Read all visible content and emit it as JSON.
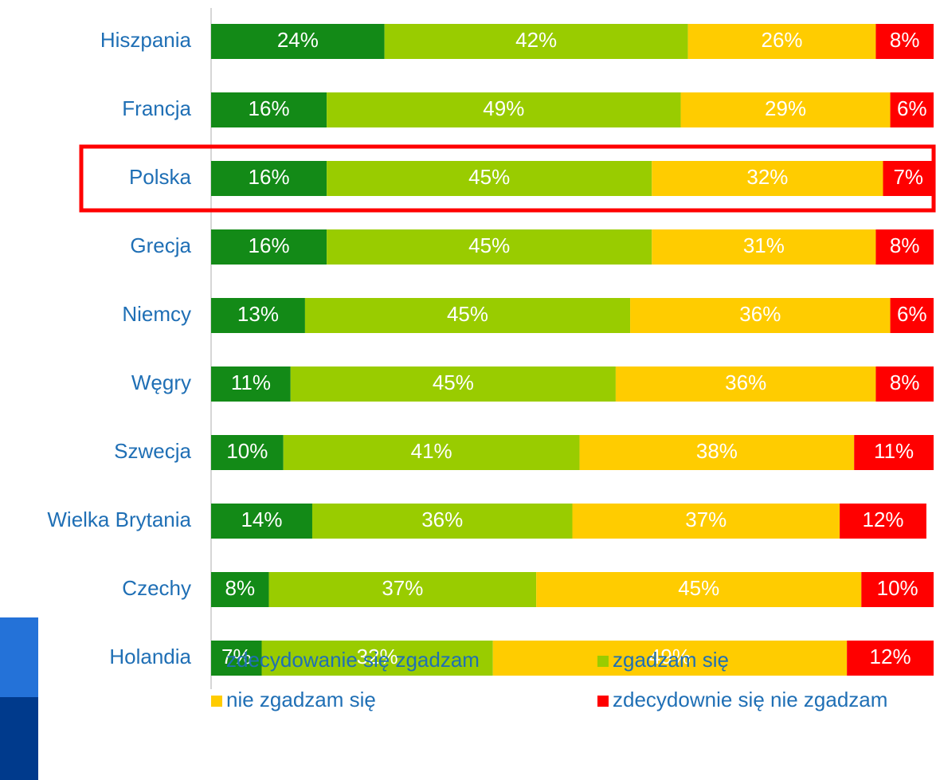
{
  "chart_data": {
    "type": "stacked_bar_horizontal",
    "categories": [
      "Hiszpania",
      "Francja",
      "Polska",
      "Grecja",
      "Niemcy",
      "Węgry",
      "Szwecja",
      "Wielka Brytania",
      "Czechy",
      "Holandia"
    ],
    "xlim": [
      0,
      100
    ],
    "highlight": "Polska",
    "legend": "bottom",
    "series": [
      {
        "name": "zdecydowanie się zgadzam",
        "color": "#138a17",
        "values": [
          24,
          16,
          16,
          16,
          13,
          11,
          10,
          14,
          8,
          7
        ],
        "value_labels": [
          "24%",
          "16%",
          "16%",
          "16%",
          "13%",
          "11%",
          "10%",
          "14%",
          "8%",
          "7%"
        ]
      },
      {
        "name": "zgadzam się",
        "color": "#99cc00",
        "values": [
          42,
          49,
          45,
          45,
          45,
          45,
          41,
          36,
          37,
          32
        ],
        "value_labels": [
          "42%",
          "49%",
          "45%",
          "45%",
          "45%",
          "45%",
          "41%",
          "36%",
          "37%",
          "32%"
        ]
      },
      {
        "name": "nie zgadzam się",
        "color": "#ffcc00",
        "values": [
          26,
          29,
          32,
          31,
          36,
          36,
          38,
          37,
          45,
          49
        ],
        "value_labels": [
          "26%",
          "29%",
          "32%",
          "31%",
          "36%",
          "36%",
          "38%",
          "37%",
          "45%",
          "49%"
        ]
      },
      {
        "name": "zdecydownie się nie zgadzam",
        "color": "#ff0000",
        "values": [
          8,
          6,
          7,
          8,
          6,
          8,
          11,
          12,
          10,
          12
        ],
        "value_labels": [
          "8%",
          "6%",
          "7%",
          "8%",
          "6%",
          "8%",
          "11%",
          "12%",
          "10%",
          "12%"
        ]
      }
    ]
  }
}
